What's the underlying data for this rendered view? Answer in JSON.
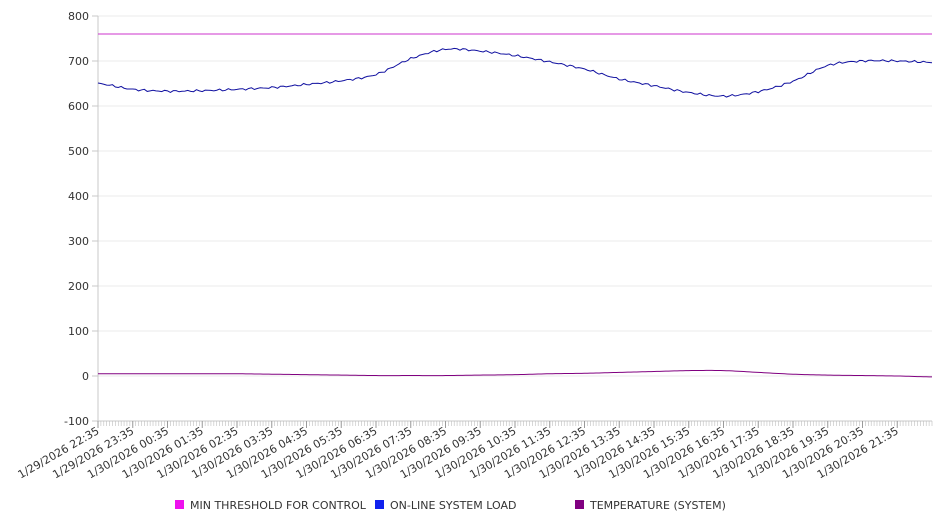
{
  "chart_data": {
    "type": "line",
    "title": "",
    "xlabel": "",
    "ylabel": "",
    "ylim": [
      -100,
      800
    ],
    "y_ticks": [
      -100,
      0,
      100,
      200,
      300,
      400,
      500,
      600,
      700,
      800
    ],
    "x_tick_labels": [
      "1/29/2026 22:35",
      "1/29/2026 23:35",
      "1/30/2026 00:35",
      "1/30/2026 01:35",
      "1/30/2026 02:35",
      "1/30/2026 03:35",
      "1/30/2026 04:35",
      "1/30/2026 05:35",
      "1/30/2026 06:35",
      "1/30/2026 07:35",
      "1/30/2026 08:35",
      "1/30/2026 09:35",
      "1/30/2026 10:35",
      "1/30/2026 11:35",
      "1/30/2026 12:35",
      "1/30/2026 13:35",
      "1/30/2026 14:35",
      "1/30/2026 15:35",
      "1/30/2026 16:35",
      "1/30/2026 17:35",
      "1/30/2026 18:35",
      "1/30/2026 19:35",
      "1/30/2026 20:35",
      "1/30/2026 21:35"
    ],
    "x_hours": [
      0,
      1,
      2,
      3,
      4,
      5,
      6,
      7,
      8,
      9,
      10,
      11,
      12,
      13,
      14,
      15,
      16,
      17,
      18,
      19,
      20,
      21,
      22,
      23,
      24
    ],
    "x_range_hours": [
      0,
      24
    ],
    "grid": "horizontal",
    "legend_position": "bottom-center",
    "series": [
      {
        "name": "MIN THRESHOLD FOR CONTROL",
        "color": "#cc33cc",
        "values": [
          760,
          760,
          760,
          760,
          760,
          760,
          760,
          760,
          760,
          760,
          760,
          760,
          760,
          760,
          760,
          760,
          760,
          760,
          760,
          760,
          760,
          760,
          760,
          760,
          760
        ]
      },
      {
        "name": "ON-LINE SYSTEM LOAD",
        "color": "#1010a0",
        "values": [
          650,
          637,
          633,
          634,
          637,
          641,
          648,
          656,
          670,
          705,
          726,
          722,
          712,
          698,
          682,
          660,
          645,
          630,
          622,
          632,
          655,
          690,
          700,
          700,
          697
        ]
      },
      {
        "name": "TEMPERATURE (SYSTEM)",
        "color": "#800080",
        "values": [
          5,
          5,
          5,
          5,
          5,
          4,
          3,
          2,
          1,
          1,
          1,
          2,
          3,
          5,
          6,
          8,
          10,
          12,
          12,
          8,
          4,
          2,
          1,
          0,
          -2
        ]
      }
    ]
  }
}
